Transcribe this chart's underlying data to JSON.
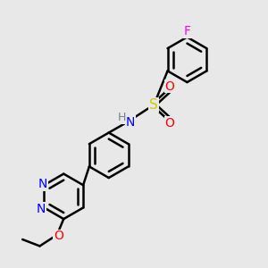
{
  "bg_color": "#e8e8e8",
  "bond_color": "#000000",
  "bond_width": 1.8,
  "atom_colors": {
    "N": "#0000ff",
    "O": "#ff0000",
    "S": "#cccc00",
    "F": "#ff00ff",
    "H": "#708090",
    "C": "#000000"
  },
  "font_size": 9
}
